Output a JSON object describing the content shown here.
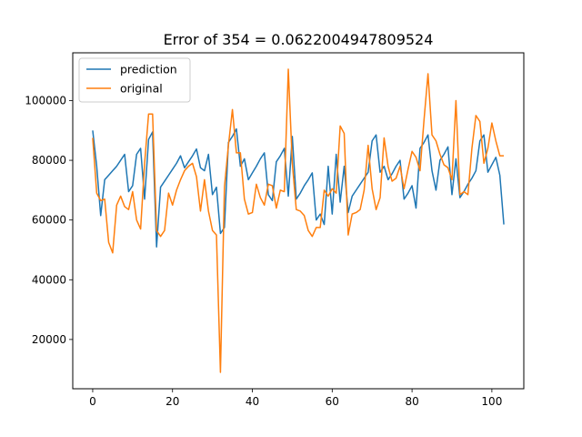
{
  "chart_data": {
    "type": "line",
    "title": "Error of 354 = 0.0622004947809524",
    "xlabel": "",
    "ylabel": "",
    "xlim": [
      -5,
      108
    ],
    "ylim": [
      3500,
      116000
    ],
    "xticks": [
      0,
      20,
      40,
      60,
      80,
      100
    ],
    "yticks": [
      20000,
      40000,
      60000,
      80000,
      100000
    ],
    "grid": false,
    "legend_position": "top-left",
    "series": [
      {
        "name": "prediction",
        "color": "#1f77b4",
        "x": [
          0,
          1,
          2,
          3,
          4,
          5,
          6,
          7,
          8,
          9,
          10,
          11,
          12,
          13,
          14,
          15,
          16,
          17,
          18,
          19,
          20,
          21,
          22,
          23,
          24,
          25,
          26,
          27,
          28,
          29,
          30,
          31,
          32,
          33,
          34,
          35,
          36,
          37,
          38,
          39,
          40,
          41,
          42,
          43,
          44,
          45,
          46,
          47,
          48,
          49,
          50,
          51,
          52,
          53,
          54,
          55,
          56,
          57,
          58,
          59,
          60,
          61,
          62,
          63,
          64,
          65,
          66,
          67,
          68,
          69,
          70,
          71,
          72,
          73,
          74,
          75,
          76,
          77,
          78,
          79,
          80,
          81,
          82,
          83,
          84,
          85,
          86,
          87,
          88,
          89,
          90,
          91,
          92,
          93,
          94,
          95,
          96,
          97,
          98,
          99,
          100,
          101,
          102,
          103
        ],
        "values": [
          90000,
          78000,
          61500,
          73500,
          75000,
          76500,
          78000,
          80000,
          82000,
          69500,
          71500,
          82000,
          84000,
          67000,
          87000,
          89500,
          51000,
          71000,
          73000,
          75000,
          77000,
          79000,
          81500,
          77500,
          79500,
          81500,
          83800,
          77500,
          76500,
          82000,
          68500,
          71000,
          55500,
          57500,
          86000,
          88000,
          90500,
          78000,
          80500,
          73500,
          75800,
          78000,
          80500,
          82500,
          68500,
          66500,
          79500,
          81500,
          84000,
          68000,
          88000,
          67000,
          69000,
          71500,
          73500,
          75800,
          60000,
          62000,
          58500,
          78000,
          62000,
          82000,
          66000,
          78000,
          62500,
          68000,
          70000,
          72000,
          74000,
          76000,
          86500,
          88500,
          76000,
          78000,
          73500,
          75500,
          78000,
          80000,
          67000,
          69000,
          71500,
          64000,
          84000,
          86000,
          88500,
          76500,
          70000,
          80000,
          82000,
          84500,
          68500,
          80500,
          67500,
          69500,
          72000,
          74000,
          76500,
          86500,
          88500,
          76000,
          78500,
          81000,
          75000,
          58500
        ]
      },
      {
        "name": "original",
        "color": "#ff7f0e",
        "x": [
          0,
          1,
          2,
          3,
          4,
          5,
          6,
          7,
          8,
          9,
          10,
          11,
          12,
          13,
          14,
          15,
          16,
          17,
          18,
          19,
          20,
          21,
          22,
          23,
          24,
          25,
          26,
          27,
          28,
          29,
          30,
          31,
          32,
          33,
          34,
          35,
          36,
          37,
          38,
          39,
          40,
          41,
          42,
          43,
          44,
          45,
          46,
          47,
          48,
          49,
          50,
          51,
          52,
          53,
          54,
          55,
          56,
          57,
          58,
          59,
          60,
          61,
          62,
          63,
          64,
          65,
          66,
          67,
          68,
          69,
          70,
          71,
          72,
          73,
          74,
          75,
          76,
          77,
          78,
          79,
          80,
          81,
          82,
          83,
          84,
          85,
          86,
          87,
          88,
          89,
          90,
          91,
          92,
          93,
          94,
          95,
          96,
          97,
          98,
          99,
          100,
          101,
          102,
          103
        ],
        "values": [
          87500,
          69000,
          66500,
          67000,
          52500,
          49000,
          65000,
          68000,
          64500,
          63500,
          69500,
          60000,
          57000,
          79000,
          95500,
          95500,
          56500,
          54500,
          56500,
          69000,
          65000,
          70000,
          73500,
          76500,
          78000,
          79000,
          74500,
          63000,
          73500,
          63000,
          56500,
          55000,
          9000,
          71000,
          85000,
          97000,
          82500,
          82500,
          67000,
          62000,
          62500,
          72000,
          67500,
          65000,
          72000,
          71500,
          64000,
          70000,
          69500,
          110500,
          79000,
          63500,
          63000,
          61500,
          56500,
          54500,
          57500,
          57500,
          70000,
          68000,
          70500,
          69000,
          91500,
          89000,
          55000,
          62000,
          62500,
          63500,
          70000,
          85000,
          70500,
          63500,
          67500,
          87500,
          78000,
          73000,
          74000,
          78000,
          70500,
          77000,
          83000,
          81000,
          76500,
          93500,
          109000,
          88500,
          86500,
          82000,
          78500,
          77500,
          73500,
          100000,
          68500,
          69500,
          68500,
          84000,
          95000,
          93000,
          79000,
          84000,
          92500,
          86500,
          81500,
          81500
        ]
      }
    ]
  }
}
